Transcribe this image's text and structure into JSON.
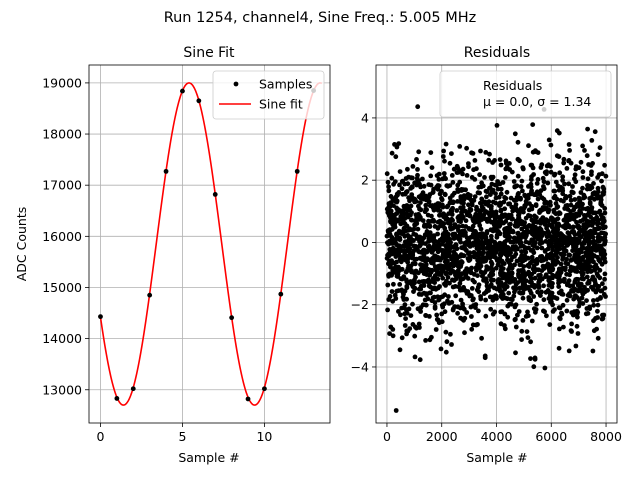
{
  "figure": {
    "suptitle": "Run 1254, channel4, Sine Freq.: 5.005 MHz"
  },
  "chart_data": [
    {
      "type": "line",
      "title": "Sine Fit",
      "xlabel": "Sample #",
      "ylabel": "ADC Counts",
      "xlim": [
        -0.7,
        14.0
      ],
      "ylim": [
        12350,
        19350
      ],
      "xticks": [
        0,
        5,
        10
      ],
      "yticks": [
        13000,
        14000,
        15000,
        16000,
        17000,
        18000,
        19000
      ],
      "grid": true,
      "legend": {
        "position": "top-right",
        "entries": [
          "Samples",
          "Sine fit"
        ]
      },
      "fit": {
        "amplitude": 3150,
        "offset": 15850,
        "period": 8,
        "peak_x": 5.4,
        "x_range": [
          0,
          13.5
        ]
      },
      "series": [
        {
          "name": "Samples",
          "style": "marker",
          "color": "#000000",
          "x": [
            0,
            1,
            2,
            3,
            4,
            5,
            6,
            7,
            8,
            9,
            10,
            11,
            12,
            13
          ],
          "y": [
            14430,
            12830,
            13020,
            14850,
            17270,
            18840,
            18650,
            16820,
            14410,
            12820,
            13020,
            14870,
            17270,
            18850
          ]
        },
        {
          "name": "Sine fit",
          "style": "line",
          "color": "#ff0000"
        }
      ]
    },
    {
      "type": "scatter",
      "title": "Residuals",
      "xlabel": "Sample #",
      "ylabel": "",
      "xlim": [
        -400,
        8400
      ],
      "ylim": [
        -5.8,
        5.7
      ],
      "xticks": [
        0,
        2000,
        4000,
        6000,
        8000
      ],
      "yticks": [
        -4,
        -2,
        0,
        2,
        4
      ],
      "grid": true,
      "legend": {
        "position": "top-right",
        "entries": [
          "Residuals",
          "μ = 0.0, σ = 1.34"
        ]
      },
      "series": [
        {
          "name": "Residuals",
          "color": "#000000",
          "n_points": 8000,
          "mean": 0.0,
          "std": 1.34,
          "x_range": [
            0,
            8000
          ],
          "y_range": [
            -5.4,
            4.7
          ]
        }
      ]
    }
  ]
}
